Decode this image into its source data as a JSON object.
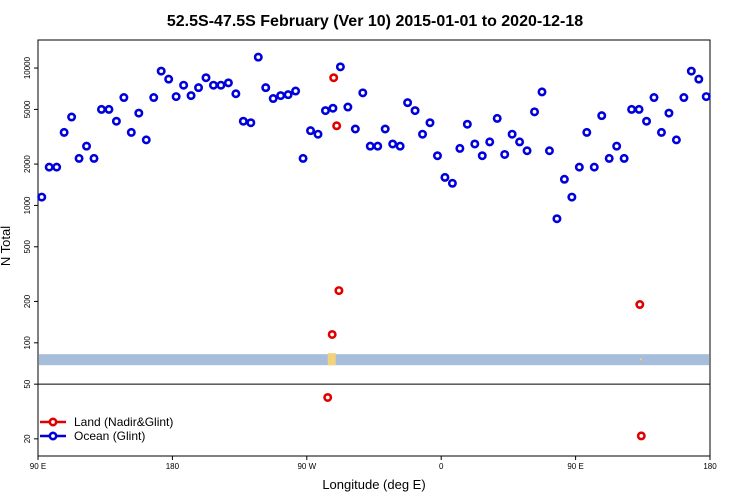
{
  "chart_data": {
    "type": "scatter",
    "title": "52.5S-47.5S February (Ver 10)   2015-01-01 to 2020-12-18",
    "xlabel": "Longitude (deg E)",
    "ylabel": "N Total",
    "x_tick_labels": [
      "90 E",
      "180",
      "90 W",
      "0",
      "90 E",
      "180"
    ],
    "x_ticks": [
      90,
      180,
      270,
      360,
      450,
      540
    ],
    "xlim": [
      90,
      540
    ],
    "ylim": [
      15,
      16000
    ],
    "y_scale": "log",
    "y_ticks": [
      20,
      50,
      100,
      200,
      500,
      1000,
      2000,
      5000,
      10000
    ],
    "y_tick_labels": [
      "20",
      "50",
      "100",
      "200",
      "500",
      "1000",
      "2000",
      "5000",
      "10000"
    ],
    "separator_y": 50,
    "legend": {
      "position": "bottom-left",
      "entries": [
        "Land (Nadir&Glint)",
        "Ocean (Glint)"
      ]
    },
    "colors": {
      "land": "#e00000",
      "ocean": "#0000dd",
      "map_ocean": "#a6bddb",
      "map_land": "#f2d27a"
    },
    "series": [
      {
        "name": "Ocean (Glint)",
        "x": [
          92.5,
          97.5,
          102.5,
          107.5,
          112.5,
          117.5,
          122.5,
          127.5,
          132.5,
          137.5,
          142.5,
          147.5,
          152.5,
          157.5,
          162.5,
          167.5,
          172.5,
          177.5,
          182.5,
          187.5,
          192.5,
          197.5,
          202.5,
          207.5,
          212.5,
          217.5,
          222.5,
          227.5,
          232.5,
          237.5,
          242.5,
          247.5,
          252.5,
          257.5,
          262.5,
          267.5,
          272.5,
          277.5,
          282.5,
          287.5,
          292.5,
          297.5,
          302.5,
          307.5,
          312.5,
          317.5,
          322.5,
          327.5,
          332.5,
          337.5,
          342.5,
          347.5,
          352.5,
          357.5,
          362.5,
          367.5,
          372.5,
          377.5,
          382.5,
          387.5,
          392.5,
          397.5,
          402.5,
          407.5,
          412.5,
          417.5,
          422.5,
          427.5,
          432.5,
          437.5,
          442.5,
          447.5,
          452.5,
          457.5,
          462.5,
          467.5,
          472.5,
          477.5,
          482.5,
          487.5,
          492.5,
          497.5,
          502.5,
          507.5,
          512.5,
          517.5,
          522.5,
          527.5,
          532.5,
          537.5
        ],
        "values": [
          1150,
          1900,
          1900,
          3400,
          4400,
          2200,
          2700,
          2200,
          5000,
          5000,
          4100,
          6100,
          3400,
          4700,
          3000,
          6100,
          9500,
          8300,
          6200,
          7500,
          6300,
          7200,
          8500,
          7500,
          7500,
          7800,
          6500,
          4100,
          4000,
          12000,
          7200,
          6000,
          6300,
          6400,
          6800,
          2200,
          3500,
          3300,
          4900,
          5100,
          10200,
          5200,
          3600,
          6600,
          2700,
          2700,
          3600,
          2800,
          2700,
          5600,
          4900,
          3300,
          4000,
          2300,
          1600,
          1450,
          2600,
          3900,
          2800,
          2300,
          2900,
          4300,
          2350,
          3300,
          2900,
          2500,
          4800,
          6700,
          2500,
          800,
          1550,
          1150,
          1900,
          3400,
          1900,
          4500,
          2200,
          2700,
          2200,
          5000,
          5000,
          4100,
          6100,
          3400,
          4700,
          3000,
          6100,
          9500,
          8300,
          6200
        ]
      },
      {
        "name": "Land (Nadir&Glint)",
        "x": [
          284,
          288,
          290,
          291.5,
          287,
          493,
          494
        ],
        "values": [
          40,
          8500,
          3800,
          240,
          115,
          190,
          21
        ]
      }
    ]
  }
}
